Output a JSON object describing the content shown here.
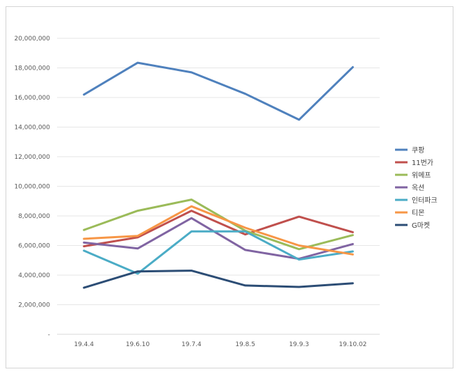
{
  "chart_data": {
    "type": "line",
    "title": "",
    "xlabel": "",
    "ylabel": "",
    "categories": [
      "19.4.4",
      "19.6.10",
      "19.7.4",
      "19.8.5",
      "19.9.3",
      "19.10.02"
    ],
    "ylim": [
      0,
      20000000
    ],
    "y_ticks": [
      {
        "value": 0,
        "label": "-"
      },
      {
        "value": 2000000,
        "label": "2,000,000"
      },
      {
        "value": 4000000,
        "label": "4,000,000"
      },
      {
        "value": 6000000,
        "label": "6,000,000"
      },
      {
        "value": 8000000,
        "label": "8,000,000"
      },
      {
        "value": 10000000,
        "label": "10,000,000"
      },
      {
        "value": 12000000,
        "label": "12,000,000"
      },
      {
        "value": 14000000,
        "label": "14,000,000"
      },
      {
        "value": 16000000,
        "label": "16,000,000"
      },
      {
        "value": 18000000,
        "label": "18,000,000"
      },
      {
        "value": 20000000,
        "label": "20,000,000"
      }
    ],
    "grid": true,
    "legend_position": "right",
    "series": [
      {
        "name": "쿠팡",
        "color": "#4F81BD",
        "values": [
          16200000,
          18350000,
          17700000,
          16250000,
          14500000,
          18050000
        ]
      },
      {
        "name": "11번가",
        "color": "#C0504D",
        "values": [
          5950000,
          6550000,
          8350000,
          6750000,
          7950000,
          6900000
        ]
      },
      {
        "name": "위메프",
        "color": "#9BBB59",
        "values": [
          7050000,
          8350000,
          9100000,
          7000000,
          5750000,
          6700000
        ]
      },
      {
        "name": "옥션",
        "color": "#8064A2",
        "values": [
          6200000,
          5800000,
          7850000,
          5700000,
          5100000,
          6100000
        ]
      },
      {
        "name": "인터파크",
        "color": "#4BACC6",
        "values": [
          5650000,
          4100000,
          6950000,
          6950000,
          5050000,
          5600000
        ]
      },
      {
        "name": "티몬",
        "color": "#F79646",
        "values": [
          6450000,
          6650000,
          8650000,
          7200000,
          6000000,
          5400000
        ]
      },
      {
        "name": "G마켓",
        "color": "#2C4D75",
        "values": [
          3150000,
          4250000,
          4300000,
          3300000,
          3200000,
          3450000
        ]
      }
    ]
  }
}
